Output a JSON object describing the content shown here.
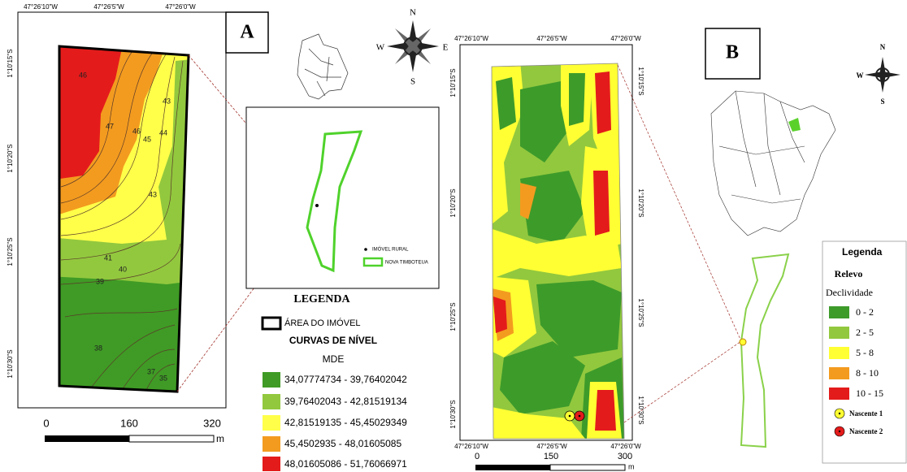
{
  "panel_a": {
    "label": "A",
    "top_coords": [
      "47°26'10\"W",
      "47°26'5\"W",
      "47°26'0\"W"
    ],
    "left_coords": [
      "1°10'15\"S",
      "1°10'20\"S",
      "1°10'25\"S",
      "1°10'30\"S"
    ],
    "compass": {
      "n": "N",
      "e": "E",
      "s": "S",
      "w": "W"
    },
    "contour_labels": [
      46,
      47,
      46,
      45,
      44,
      43,
      43,
      41,
      40,
      39,
      38,
      37,
      35
    ],
    "inset_legend": [
      "IMÓVEL RURAL",
      "NOVA TIMBOTEUA"
    ],
    "legend": {
      "title": "LEGENDA",
      "area": "ÁREA DO IMÓVEL",
      "curves": "CURVAS DE NÍVEL",
      "mde": "MDE",
      "classes": [
        "34,07774734 - 39,76402042",
        "39,76402043 - 42,81519134",
        "42,81519135 - 45,45029349",
        "45,4502935 - 48,01605085",
        "48,01605086 - 51,76066971"
      ]
    },
    "scale": {
      "ticks": [
        0,
        160,
        320
      ],
      "unit": "m"
    }
  },
  "panel_b": {
    "label": "B",
    "top_coords": [
      "47°26'10\"W",
      "47°26'5\"W",
      "47°26'0\"W"
    ],
    "bottom_coords": [
      "47°26'10\"W",
      "47°26'5\"W",
      "47°26'0\"W"
    ],
    "left_coords": [
      "1°10'15\"S",
      "1°10'20\"S",
      "1°10'25\"S",
      "1°10'30\"S"
    ],
    "right_coords": [
      "1°10'15\"S",
      "1°10'20\"S",
      "1°10'25\"S",
      "1°10'30\"S"
    ],
    "compass": {
      "n": "N",
      "w": "W",
      "s": "S"
    },
    "legend": {
      "title": "Legenda",
      "subtitle": "Relevo",
      "variable": "Declividade",
      "classes": [
        "0 - 2",
        "2 - 5",
        "5 - 8",
        "8 - 10",
        "10 - 15"
      ],
      "points": [
        "Nascente 1",
        "Nascente 2"
      ]
    },
    "scale": {
      "ticks": [
        0,
        150,
        300
      ],
      "unit": "m"
    }
  }
}
